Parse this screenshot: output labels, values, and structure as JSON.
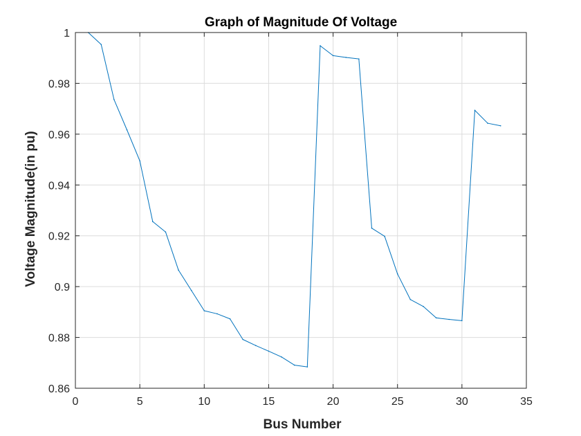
{
  "chart_data": {
    "type": "line",
    "title": "Graph of Magnitude Of Voltage",
    "xlabel": "Bus Number",
    "ylabel": "Voltage Magnitude(in pu)",
    "xlim": [
      0,
      35
    ],
    "ylim": [
      0.86,
      1.0
    ],
    "xticks": [
      0,
      5,
      10,
      15,
      20,
      25,
      30,
      35
    ],
    "xtick_labels": [
      "0",
      "5",
      "10",
      "15",
      "20",
      "25",
      "30",
      "35"
    ],
    "yticks": [
      0.86,
      0.88,
      0.9,
      0.92,
      0.94,
      0.96,
      0.98,
      1.0
    ],
    "ytick_labels": [
      "0.86",
      "0.88",
      "0.9",
      "0.92",
      "0.94",
      "0.96",
      "0.98",
      "1"
    ],
    "grid": true,
    "line_color": "#0072bd",
    "series": [
      {
        "x": [
          1,
          2,
          3,
          4,
          5,
          6,
          7,
          8,
          9,
          10,
          11,
          12,
          13,
          14,
          15,
          16,
          17,
          18,
          19,
          20,
          21,
          22,
          23,
          24,
          25,
          26,
          27,
          28,
          29,
          30,
          31,
          32,
          33
        ],
        "values": [
          1.0,
          0.9953,
          0.9736,
          0.9617,
          0.9495,
          0.9256,
          0.9215,
          0.9065,
          0.8985,
          0.8905,
          0.8893,
          0.8873,
          0.8792,
          0.8768,
          0.8746,
          0.8723,
          0.8691,
          0.8684,
          0.9948,
          0.9909,
          0.9902,
          0.9896,
          0.923,
          0.9198,
          0.905,
          0.8949,
          0.8922,
          0.8877,
          0.8871,
          0.8866,
          0.9694,
          0.9643,
          0.9633
        ]
      }
    ]
  }
}
